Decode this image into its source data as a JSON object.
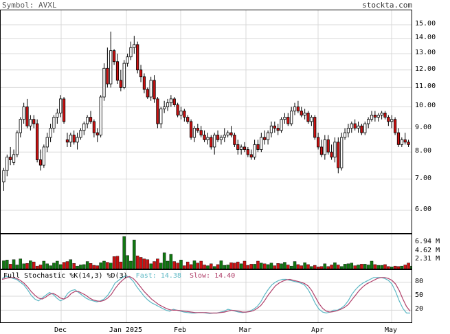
{
  "header": {
    "symbol": "Symbol: AVXL",
    "site": "stockta.com"
  },
  "colors": {
    "up": "#ffffff",
    "down": "#cc1111",
    "vol_up": "#117711",
    "vol_down": "#cc1111",
    "grid": "#d8d8d8",
    "fast": "#5bb7c4",
    "slow": "#b0406a"
  },
  "stoch_legend": {
    "title": "Full Stochastic %K(14,3) %D(3)",
    "fast_label": "Fast:",
    "fast_value": "14.38",
    "slow_label": "Slow:",
    "slow_value": "14.40"
  },
  "chart_data": [
    {
      "type": "candlestick",
      "y_scale": "log",
      "ylim": [
        5.4,
        16.0
      ],
      "y_ticks": [
        "15.00",
        "14.00",
        "13.00",
        "12.00",
        "11.00",
        "10.00",
        "9.00",
        "8.00",
        "7.00",
        "6.00"
      ],
      "x_ticks": [
        "Dec",
        "Jan 2025",
        "Feb",
        "Mar",
        "Apr",
        "May"
      ],
      "candles": [
        [
          6.9,
          7.4,
          6.6,
          7.3
        ],
        [
          7.3,
          7.9,
          7.1,
          7.8
        ],
        [
          7.8,
          8.2,
          7.5,
          7.7
        ],
        [
          7.6,
          8.1,
          7.5,
          7.9
        ],
        [
          7.9,
          8.9,
          7.8,
          8.8
        ],
        [
          8.8,
          9.5,
          8.6,
          9.4
        ],
        [
          9.4,
          10.2,
          9.2,
          10.0
        ],
        [
          10.0,
          10.4,
          9.0,
          9.1
        ],
        [
          9.1,
          9.6,
          8.9,
          9.4
        ],
        [
          9.4,
          9.6,
          9.0,
          9.2
        ],
        [
          9.2,
          9.4,
          7.6,
          7.7
        ],
        [
          7.7,
          8.1,
          7.3,
          7.5
        ],
        [
          7.5,
          8.3,
          7.4,
          8.2
        ],
        [
          8.2,
          8.8,
          8.0,
          8.6
        ],
        [
          8.6,
          9.2,
          8.4,
          9.0
        ],
        [
          9.0,
          9.6,
          8.8,
          9.5
        ],
        [
          9.5,
          9.9,
          9.2,
          9.7
        ],
        [
          9.7,
          10.6,
          9.5,
          10.4
        ],
        [
          10.4,
          10.5,
          9.2,
          9.3
        ],
        [
          8.5,
          8.8,
          8.2,
          8.4
        ],
        [
          8.4,
          8.8,
          8.2,
          8.7
        ],
        [
          8.7,
          8.9,
          8.3,
          8.4
        ],
        [
          8.4,
          8.8,
          8.1,
          8.6
        ],
        [
          8.6,
          9.0,
          8.5,
          8.9
        ],
        [
          8.9,
          9.3,
          8.7,
          9.2
        ],
        [
          9.2,
          9.6,
          9.0,
          9.5
        ],
        [
          9.5,
          9.8,
          9.2,
          9.3
        ],
        [
          9.3,
          9.4,
          8.6,
          8.8
        ],
        [
          8.8,
          9.0,
          8.4,
          8.7
        ],
        [
          8.7,
          10.6,
          8.6,
          10.5
        ],
        [
          10.5,
          12.4,
          10.3,
          12.1
        ],
        [
          12.1,
          13.4,
          11.0,
          11.2
        ],
        [
          11.2,
          14.5,
          11.0,
          13.2
        ],
        [
          13.2,
          13.3,
          12.3,
          12.5
        ],
        [
          12.5,
          13.0,
          11.2,
          11.4
        ],
        [
          11.4,
          12.0,
          10.8,
          11.0
        ],
        [
          11.0,
          12.6,
          10.9,
          12.4
        ],
        [
          12.4,
          13.0,
          12.2,
          12.8
        ],
        [
          12.8,
          13.8,
          12.6,
          13.4
        ],
        [
          13.4,
          14.2,
          13.0,
          13.6
        ],
        [
          13.6,
          13.8,
          11.8,
          12.0
        ],
        [
          12.0,
          12.3,
          11.3,
          11.6
        ],
        [
          11.6,
          11.8,
          10.7,
          10.9
        ],
        [
          10.9,
          11.0,
          10.4,
          10.5
        ],
        [
          10.5,
          11.6,
          10.3,
          11.4
        ],
        [
          11.4,
          11.7,
          10.2,
          10.4
        ],
        [
          10.4,
          10.5,
          9.0,
          9.2
        ],
        [
          9.2,
          10.0,
          9.0,
          9.9
        ],
        [
          9.9,
          10.3,
          9.7,
          10.0
        ],
        [
          10.0,
          10.4,
          9.8,
          10.2
        ],
        [
          10.2,
          10.6,
          10.0,
          10.4
        ],
        [
          10.4,
          10.5,
          10.0,
          10.1
        ],
        [
          10.1,
          10.2,
          9.5,
          9.6
        ],
        [
          9.6,
          10.0,
          9.4,
          9.8
        ],
        [
          9.8,
          9.9,
          9.3,
          9.5
        ],
        [
          9.5,
          9.6,
          9.2,
          9.3
        ],
        [
          9.3,
          9.4,
          8.5,
          8.6
        ],
        [
          8.6,
          9.1,
          8.4,
          9.0
        ],
        [
          9.0,
          9.2,
          8.8,
          8.9
        ],
        [
          8.9,
          9.1,
          8.6,
          8.7
        ],
        [
          8.7,
          8.9,
          8.4,
          8.5
        ],
        [
          8.5,
          8.8,
          8.3,
          8.6
        ],
        [
          8.6,
          8.7,
          8.1,
          8.2
        ],
        [
          8.2,
          8.8,
          7.9,
          8.7
        ],
        [
          8.7,
          8.9,
          8.4,
          8.5
        ],
        [
          8.5,
          8.7,
          8.3,
          8.6
        ],
        [
          8.6,
          9.0,
          8.4,
          8.7
        ],
        [
          8.7,
          8.9,
          8.6,
          8.8
        ],
        [
          8.8,
          9.1,
          8.6,
          8.7
        ],
        [
          8.7,
          8.8,
          8.2,
          8.3
        ],
        [
          8.3,
          8.5,
          7.9,
          8.1
        ],
        [
          8.1,
          8.3,
          7.9,
          8.2
        ],
        [
          8.2,
          8.4,
          8.0,
          8.1
        ],
        [
          8.1,
          8.2,
          7.8,
          7.9
        ],
        [
          7.9,
          8.1,
          7.7,
          7.8
        ],
        [
          7.8,
          8.5,
          7.7,
          8.3
        ],
        [
          8.3,
          8.5,
          8.0,
          8.1
        ],
        [
          8.1,
          8.8,
          8.0,
          8.6
        ],
        [
          8.6,
          8.9,
          8.3,
          8.5
        ],
        [
          8.5,
          8.9,
          8.3,
          8.8
        ],
        [
          8.8,
          9.3,
          8.6,
          9.1
        ],
        [
          9.1,
          9.3,
          8.8,
          9.0
        ],
        [
          9.0,
          9.2,
          8.7,
          8.9
        ],
        [
          8.9,
          9.5,
          8.8,
          9.4
        ],
        [
          9.4,
          9.7,
          9.2,
          9.5
        ],
        [
          9.5,
          9.7,
          9.1,
          9.2
        ],
        [
          9.2,
          10.0,
          9.1,
          9.8
        ],
        [
          9.8,
          10.2,
          9.6,
          10.0
        ],
        [
          10.0,
          10.3,
          9.7,
          9.8
        ],
        [
          9.8,
          10.0,
          9.5,
          9.6
        ],
        [
          9.6,
          9.9,
          9.4,
          9.7
        ],
        [
          9.7,
          9.8,
          9.2,
          9.3
        ],
        [
          9.3,
          9.6,
          9.1,
          9.5
        ],
        [
          9.5,
          9.6,
          8.5,
          8.6
        ],
        [
          8.6,
          8.8,
          8.1,
          8.2
        ],
        [
          8.2,
          8.5,
          7.8,
          7.9
        ],
        [
          7.9,
          8.7,
          7.7,
          8.5
        ],
        [
          8.5,
          8.7,
          7.9,
          8.0
        ],
        [
          8.0,
          8.3,
          7.7,
          7.8
        ],
        [
          7.8,
          8.6,
          7.6,
          8.4
        ],
        [
          8.4,
          8.6,
          7.2,
          7.4
        ],
        [
          7.4,
          8.8,
          7.3,
          8.6
        ],
        [
          8.6,
          9.0,
          8.5,
          8.8
        ],
        [
          8.8,
          9.2,
          8.6,
          9.0
        ],
        [
          9.0,
          9.3,
          8.8,
          9.2
        ],
        [
          9.2,
          9.4,
          8.9,
          9.0
        ],
        [
          9.0,
          9.3,
          8.8,
          9.1
        ],
        [
          9.1,
          9.2,
          8.7,
          8.8
        ],
        [
          8.8,
          9.3,
          8.7,
          9.2
        ],
        [
          9.2,
          9.5,
          9.0,
          9.4
        ],
        [
          9.4,
          9.8,
          9.3,
          9.6
        ],
        [
          9.6,
          9.8,
          9.3,
          9.5
        ],
        [
          9.5,
          9.7,
          9.3,
          9.6
        ],
        [
          9.6,
          9.8,
          9.4,
          9.7
        ],
        [
          9.7,
          9.8,
          9.4,
          9.5
        ],
        [
          9.5,
          9.6,
          9.1,
          9.3
        ],
        [
          9.3,
          9.6,
          9.0,
          9.4
        ],
        [
          9.4,
          9.5,
          8.7,
          8.8
        ],
        [
          8.8,
          9.0,
          8.2,
          8.3
        ],
        [
          8.3,
          8.6,
          8.2,
          8.5
        ],
        [
          8.5,
          8.8,
          8.3,
          8.4
        ],
        [
          8.4,
          8.5,
          8.2,
          8.3
        ]
      ]
    },
    {
      "type": "bar",
      "series_name": "Volume",
      "y_ticks": [
        "6.94 M",
        "4.62 M",
        "2.31 M"
      ],
      "ylim": [
        0,
        8.7
      ],
      "values": [
        2.1,
        2.3,
        1.2,
        2.4,
        1.0,
        2.6,
        1.3,
        1.4,
        2.1,
        1.8,
        0.7,
        1.0,
        2.0,
        1.3,
        0.8,
        1.5,
        2.0,
        1.1,
        1.7,
        1.9,
        2.4,
        1.4,
        0.7,
        1.0,
        1.1,
        1.9,
        1.4,
        0.9,
        0.8,
        1.6,
        2.0,
        1.7,
        1.5,
        3.2,
        3.3,
        1.8,
        8.5,
        3.5,
        2.0,
        7.6,
        3.4,
        3.0,
        2.6,
        2.4,
        1.3,
        1.9,
        2.6,
        1.5,
        4.2,
        2.0,
        3.8,
        1.9,
        1.5,
        2.3,
        0.8,
        1.8,
        1.1,
        2.1,
        1.5,
        2.0,
        1.0,
        0.8,
        1.3,
        0.6,
        1.1,
        2.1,
        0.9,
        1.0,
        1.6,
        1.5,
        1.8,
        1.3,
        2.0,
        0.9,
        1.2,
        1.2,
        2.0,
        1.5,
        1.3,
        1.1,
        1.5,
        0.8,
        1.4,
        1.3,
        1.7,
        1.0,
        0.7,
        1.9,
        1.1,
        0.8,
        1.6,
        1.1,
        0.6,
        0.9,
        0.5,
        0.6,
        1.3,
        0.6,
        1.0,
        1.6,
        1.0,
        0.6,
        1.2,
        1.3,
        1.5,
        0.8,
        1.0,
        1.2,
        1.2,
        1.0,
        2.0,
        1.1,
        0.9,
        0.9,
        1.1,
        0.6,
        0.5,
        0.7,
        0.6,
        0.7,
        1.0,
        1.5,
        0.7,
        1.2,
        1.1,
        0.8,
        1.1,
        1.0,
        0.8,
        1.0,
        0.7,
        1.0
      ]
    },
    {
      "type": "line",
      "series": [
        {
          "name": "Fast",
          "values": [
            88,
            92,
            91,
            88,
            86,
            80,
            74,
            64,
            52,
            44,
            40,
            46,
            52,
            58,
            54,
            46,
            40,
            44,
            56,
            62,
            64,
            58,
            52,
            46,
            42,
            40,
            38,
            40,
            44,
            52,
            64,
            78,
            84,
            90,
            94,
            90,
            82,
            70,
            60,
            50,
            42,
            36,
            32,
            28,
            24,
            20,
            18,
            22,
            20,
            18,
            16,
            15,
            14,
            14,
            15,
            15,
            14,
            13,
            14,
            14,
            16,
            18,
            22,
            20,
            18,
            16,
            15,
            16,
            18,
            22,
            28,
            38,
            52,
            64,
            74,
            80,
            84,
            86,
            86,
            84,
            82,
            80,
            78,
            74,
            64,
            50,
            34,
            22,
            16,
            14,
            16,
            20,
            20,
            24,
            30,
            40,
            54,
            64,
            72,
            78,
            82,
            86,
            90,
            90,
            90,
            88,
            84,
            76,
            60,
            40,
            24,
            14,
            14
          ]
        },
        {
          "name": "Slow",
          "values": [
            86,
            88,
            90,
            90,
            88,
            84,
            78,
            70,
            60,
            52,
            46,
            44,
            48,
            54,
            56,
            52,
            46,
            44,
            48,
            56,
            60,
            60,
            56,
            52,
            46,
            42,
            40,
            39,
            41,
            46,
            54,
            66,
            76,
            84,
            90,
            92,
            88,
            80,
            70,
            60,
            52,
            44,
            38,
            32,
            28,
            24,
            21,
            20,
            20,
            19,
            18,
            17,
            16,
            15,
            15,
            15,
            15,
            14,
            14,
            14,
            15,
            16,
            18,
            20,
            19,
            18,
            16,
            16,
            17,
            19,
            24,
            30,
            40,
            52,
            62,
            72,
            78,
            82,
            85,
            86,
            84,
            82,
            80,
            77,
            72,
            62,
            48,
            34,
            24,
            18,
            16,
            17,
            19,
            22,
            26,
            32,
            42,
            52,
            62,
            70,
            76,
            80,
            84,
            88,
            90,
            90,
            88,
            84,
            76,
            62,
            44,
            28,
            18
          ]
        }
      ],
      "y_ticks": [
        "80",
        "50",
        "20"
      ],
      "ylim": [
        0,
        100
      ]
    }
  ]
}
